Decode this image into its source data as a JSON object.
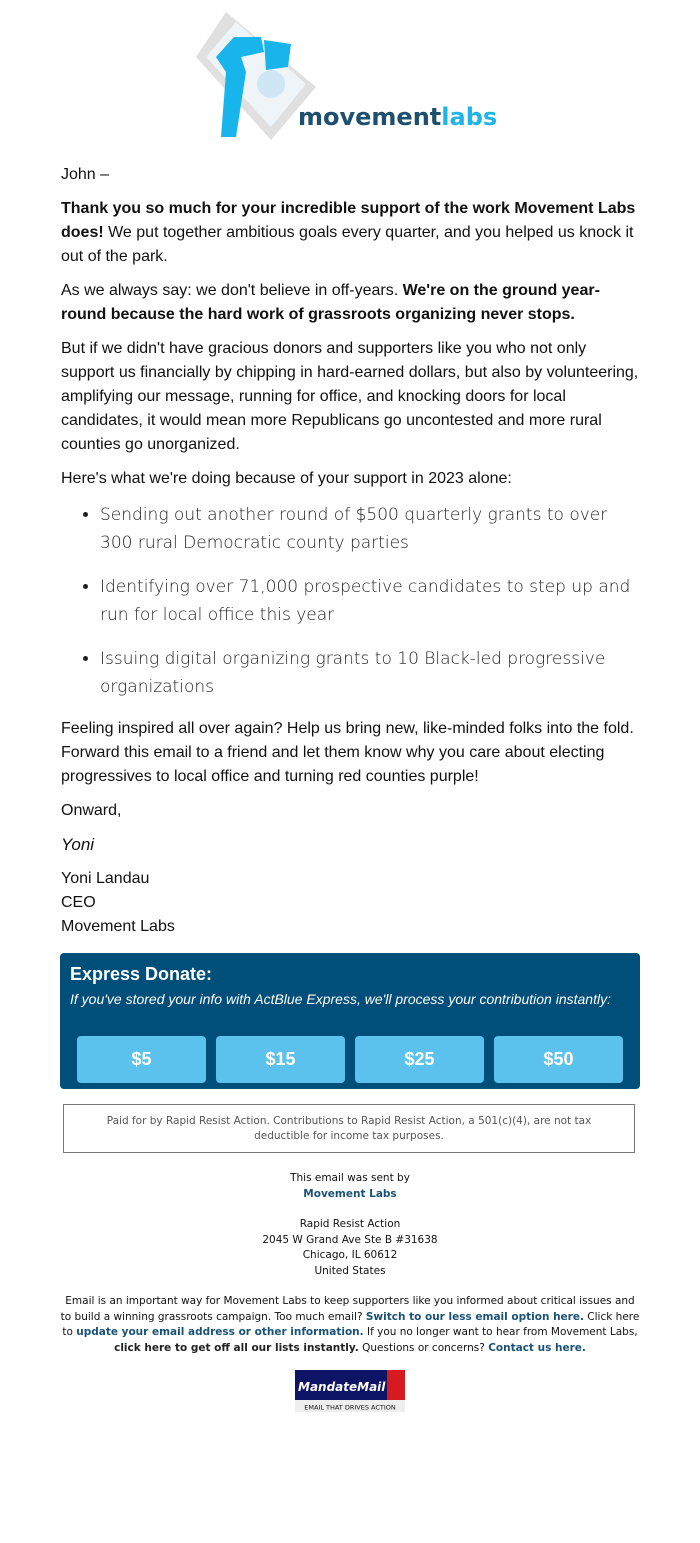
{
  "logo": {
    "text_main": "movement",
    "text_accent": "labs",
    "colors": {
      "dark": "#1e4f6e",
      "light": "#1fb5e8"
    }
  },
  "greeting": "John –",
  "paragraphs": {
    "p1_bold": "Thank you so much for your incredible support of the work Movement Labs does!",
    "p1_rest": " We put together ambitious goals every quarter, and you helped us knock it out of the park.",
    "p2_start": "As we always say: we don't believe in off-years. ",
    "p2_bold": "We're on the ground year-round because the hard work of grassroots organizing never stops.",
    "p3": "But if we didn't have gracious donors and supporters like you who not only support us financially by chipping in hard-earned dollars, but also by volunteering, amplifying our message, running for office, and knocking doors for local candidates, it would mean more Republicans go uncontested and more rural counties go unorganized.",
    "p4": "Here's what we're doing because of your support in 2023 alone:",
    "bullets": [
      "Sending out another round of $500 quarterly grants to over 300 rural Democratic county parties",
      "Identifying over 71,000 prospective candidates to step up and run for local office this year",
      "Issuing digital organizing grants to 10 Black-led progressive organizations"
    ],
    "p5": "Feeling inspired all over again? Help us bring new, like-minded folks into the fold. Forward this email to a friend and let them know why you care about electing progressives to local office and turning red counties purple!",
    "closing": "Onward,",
    "signature": "Yoni",
    "name": "Yoni Landau",
    "title": "CEO",
    "org": "Movement Labs"
  },
  "donate": {
    "title": "Express Donate:",
    "subtitle": "If you've stored your info with ActBlue Express, we'll process your contribution instantly:",
    "amounts": [
      "$5",
      "$15",
      "$25",
      "$50"
    ],
    "bg_color": "#004e7a",
    "button_color": "#5bc2ee"
  },
  "paid_for": "Paid for by Rapid Resist Action. Contributions to Rapid Resist Action, a 501(c)(4), are not tax deductible for income tax purposes.",
  "footer": {
    "sent_by": "This email was sent by",
    "sender": "Movement Labs",
    "address": [
      "Rapid Resist Action",
      "2045 W Grand Ave Ste B #31638",
      "Chicago, IL 60612",
      "United States"
    ],
    "t1": "Email is an important way for Movement Labs to keep supporters like you informed about critical issues and to build a winning grassroots campaign. Too much email? ",
    "l1": "Switch to our less email option here.",
    "t2": " Click here to ",
    "l2": "update your email address or other information.",
    "t3": " If you no longer want to hear from Movement Labs, ",
    "l3": "click here to get off all our lists instantly.",
    "t4": " Questions or concerns? ",
    "l4": "Contact us here.",
    "badge_name": "MandateMail",
    "badge_tagline": "EMAIL THAT DRIVES ACTION"
  }
}
